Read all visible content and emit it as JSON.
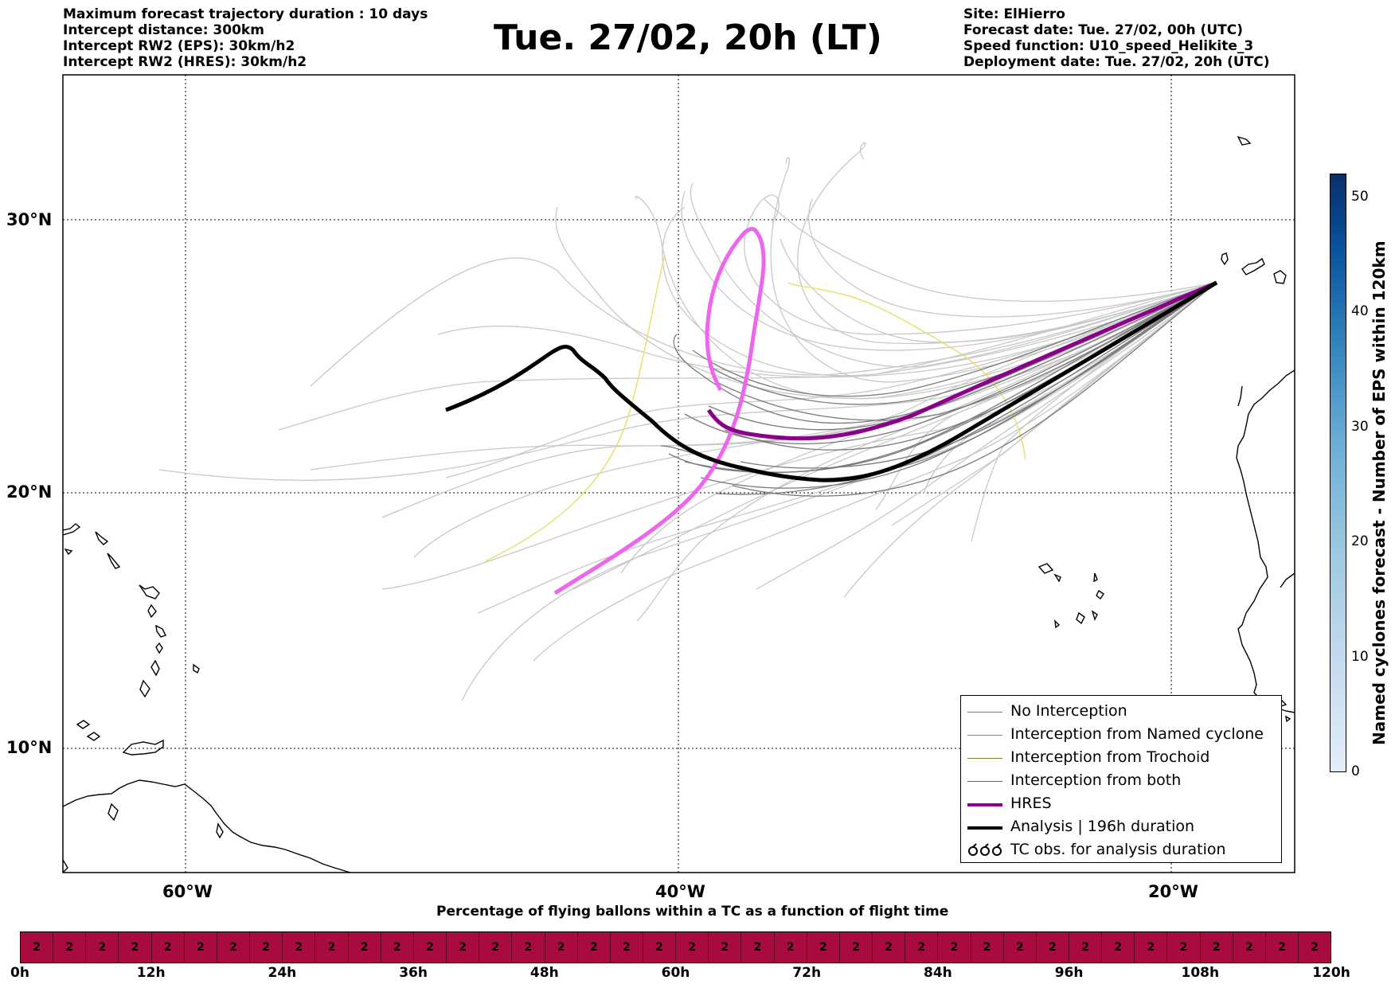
{
  "header": {
    "left_lines": [
      "Maximum forecast trajectory duration : 10 days",
      "Intercept distance: 300km",
      "Intercept RW2 (EPS):  30km/h2",
      "Intercept RW2 (HRES): 30km/h2"
    ],
    "title": "Tue. 27/02, 20h (LT)",
    "right_lines": [
      "Site: ElHierro",
      "Forecast date: Tue. 27/02, 00h (UTC)",
      "Speed function: U10_speed_Helikite_3",
      "Deployment date: Tue. 27/02, 20h (UTC)"
    ]
  },
  "map": {
    "lat_ticks": [
      "30°N",
      "20°N",
      "10°N"
    ],
    "lon_ticks": [
      "60°W",
      "40°W",
      "20°W"
    ],
    "colors": {
      "ensemble_gray": "#c8c8c8",
      "no_interception": "#7a7a7a",
      "named_cyclone": "#ff5a1e",
      "trochoid": "#808033",
      "both": "#2e8b2e",
      "hres": "#8b008b",
      "hres_light": "#ee66ee",
      "analysis": "#000000",
      "yellow_track": "#e8e070"
    }
  },
  "colorbar": {
    "label": "Named cyclones forecast - Number of EPS within 120km",
    "ticks": [
      "50",
      "40",
      "30",
      "20",
      "10",
      "0"
    ],
    "range": [
      0,
      52
    ],
    "color_low": "#e3eef9",
    "color_high": "#08306b"
  },
  "legend": {
    "items": [
      {
        "label": "No Interception",
        "color": "#7a7a7a",
        "style": "thin"
      },
      {
        "label": "Interception from Named cyclone",
        "color": "#ff5a1e",
        "style": "thin"
      },
      {
        "label": "Interception from Trochoid",
        "color": "#808033",
        "style": "thin"
      },
      {
        "label": "Interception from both",
        "color": "#2e8b2e",
        "style": "thin"
      },
      {
        "label": "HRES",
        "color": "#8b008b",
        "style": "thick"
      },
      {
        "label": "Analysis | 196h duration",
        "color": "#000000",
        "style": "thick"
      },
      {
        "label": "TC obs. for analysis duration",
        "color": "#000000",
        "style": "symbol"
      }
    ]
  },
  "timeline": {
    "caption": "Percentage of flying ballons within a TC as a function of flight time",
    "cell_value": "2",
    "cell_count": 40,
    "fill_color": "#a80c3e",
    "ticks": [
      "0h",
      "12h",
      "24h",
      "36h",
      "48h",
      "60h",
      "72h",
      "84h",
      "96h",
      "108h",
      "120h"
    ]
  }
}
